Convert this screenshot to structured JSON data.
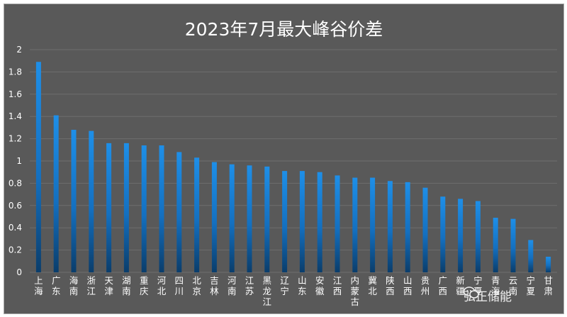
{
  "chart_data": {
    "type": "bar",
    "title": "2023年7月最大峰谷价差",
    "xlabel": "",
    "ylabel": "",
    "ylim": [
      0,
      2
    ],
    "yticks": [
      "0",
      "0.2",
      "0.4",
      "0.6",
      "0.8",
      "1",
      "1.2",
      "1.4",
      "1.6",
      "1.8",
      "2"
    ],
    "grid": true,
    "legend": "none",
    "categories": [
      "上海",
      "广东",
      "海南",
      "浙江",
      "天津",
      "湖南",
      "重庆",
      "河北",
      "四川",
      "北京",
      "吉林",
      "河南",
      "江苏",
      "黑龙江",
      "辽宁",
      "山东",
      "安徽",
      "江西",
      "内蒙古",
      "冀北",
      "陕西",
      "山西",
      "贵州",
      "广西",
      "新疆",
      "宁夏",
      "青海",
      "云南",
      "宁夏",
      "甘肃"
    ],
    "values": [
      1.89,
      1.41,
      1.28,
      1.27,
      1.16,
      1.16,
      1.14,
      1.14,
      1.08,
      1.03,
      0.99,
      0.97,
      0.96,
      0.95,
      0.91,
      0.91,
      0.9,
      0.87,
      0.85,
      0.85,
      0.82,
      0.81,
      0.76,
      0.68,
      0.66,
      0.64,
      0.49,
      0.48,
      0.29,
      0.14
    ],
    "colors": {
      "background": "#595959",
      "bar_top": "#1e8fe8",
      "bar_bottom": "#0a3d6b",
      "grid": "#6e6e6e",
      "text": "#ffffff"
    }
  },
  "watermark": {
    "icon": "wechat-icon",
    "text": "弘正储能"
  }
}
